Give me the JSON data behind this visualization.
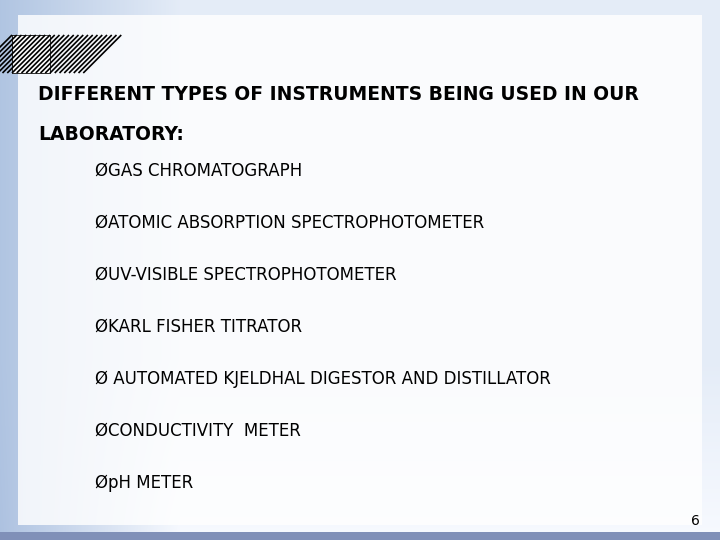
{
  "title_line1": "DIFFERENT TYPES OF INSTRUMENTS BEING USED IN OUR",
  "title_line2": "LABORATORY:",
  "bullet_items": [
    "ØGAS CHROMATOGRAPH",
    "ØATOMIC ABSORPTION SPECTROPHOTOMETER",
    "ØUV-VISIBLE SPECTROPHOTOMETER",
    "ØKARL FISHER TITRATOR",
    "Ø AUTOMATED KJELDHAL DIGESTOR AND DISTILLATOR",
    "ØCONDUCTIVITY  METER",
    "ØpH METER"
  ],
  "bg_left_color": "#a8bcd8",
  "bg_top_color": "#b0c2dc",
  "bg_right_color": "#e8ecf5",
  "bg_main_color": "#f5f7fc",
  "text_color": "#000000",
  "title_fontsize": 13.5,
  "bullet_fontsize": 12,
  "page_number": "6",
  "page_num_fontsize": 10
}
